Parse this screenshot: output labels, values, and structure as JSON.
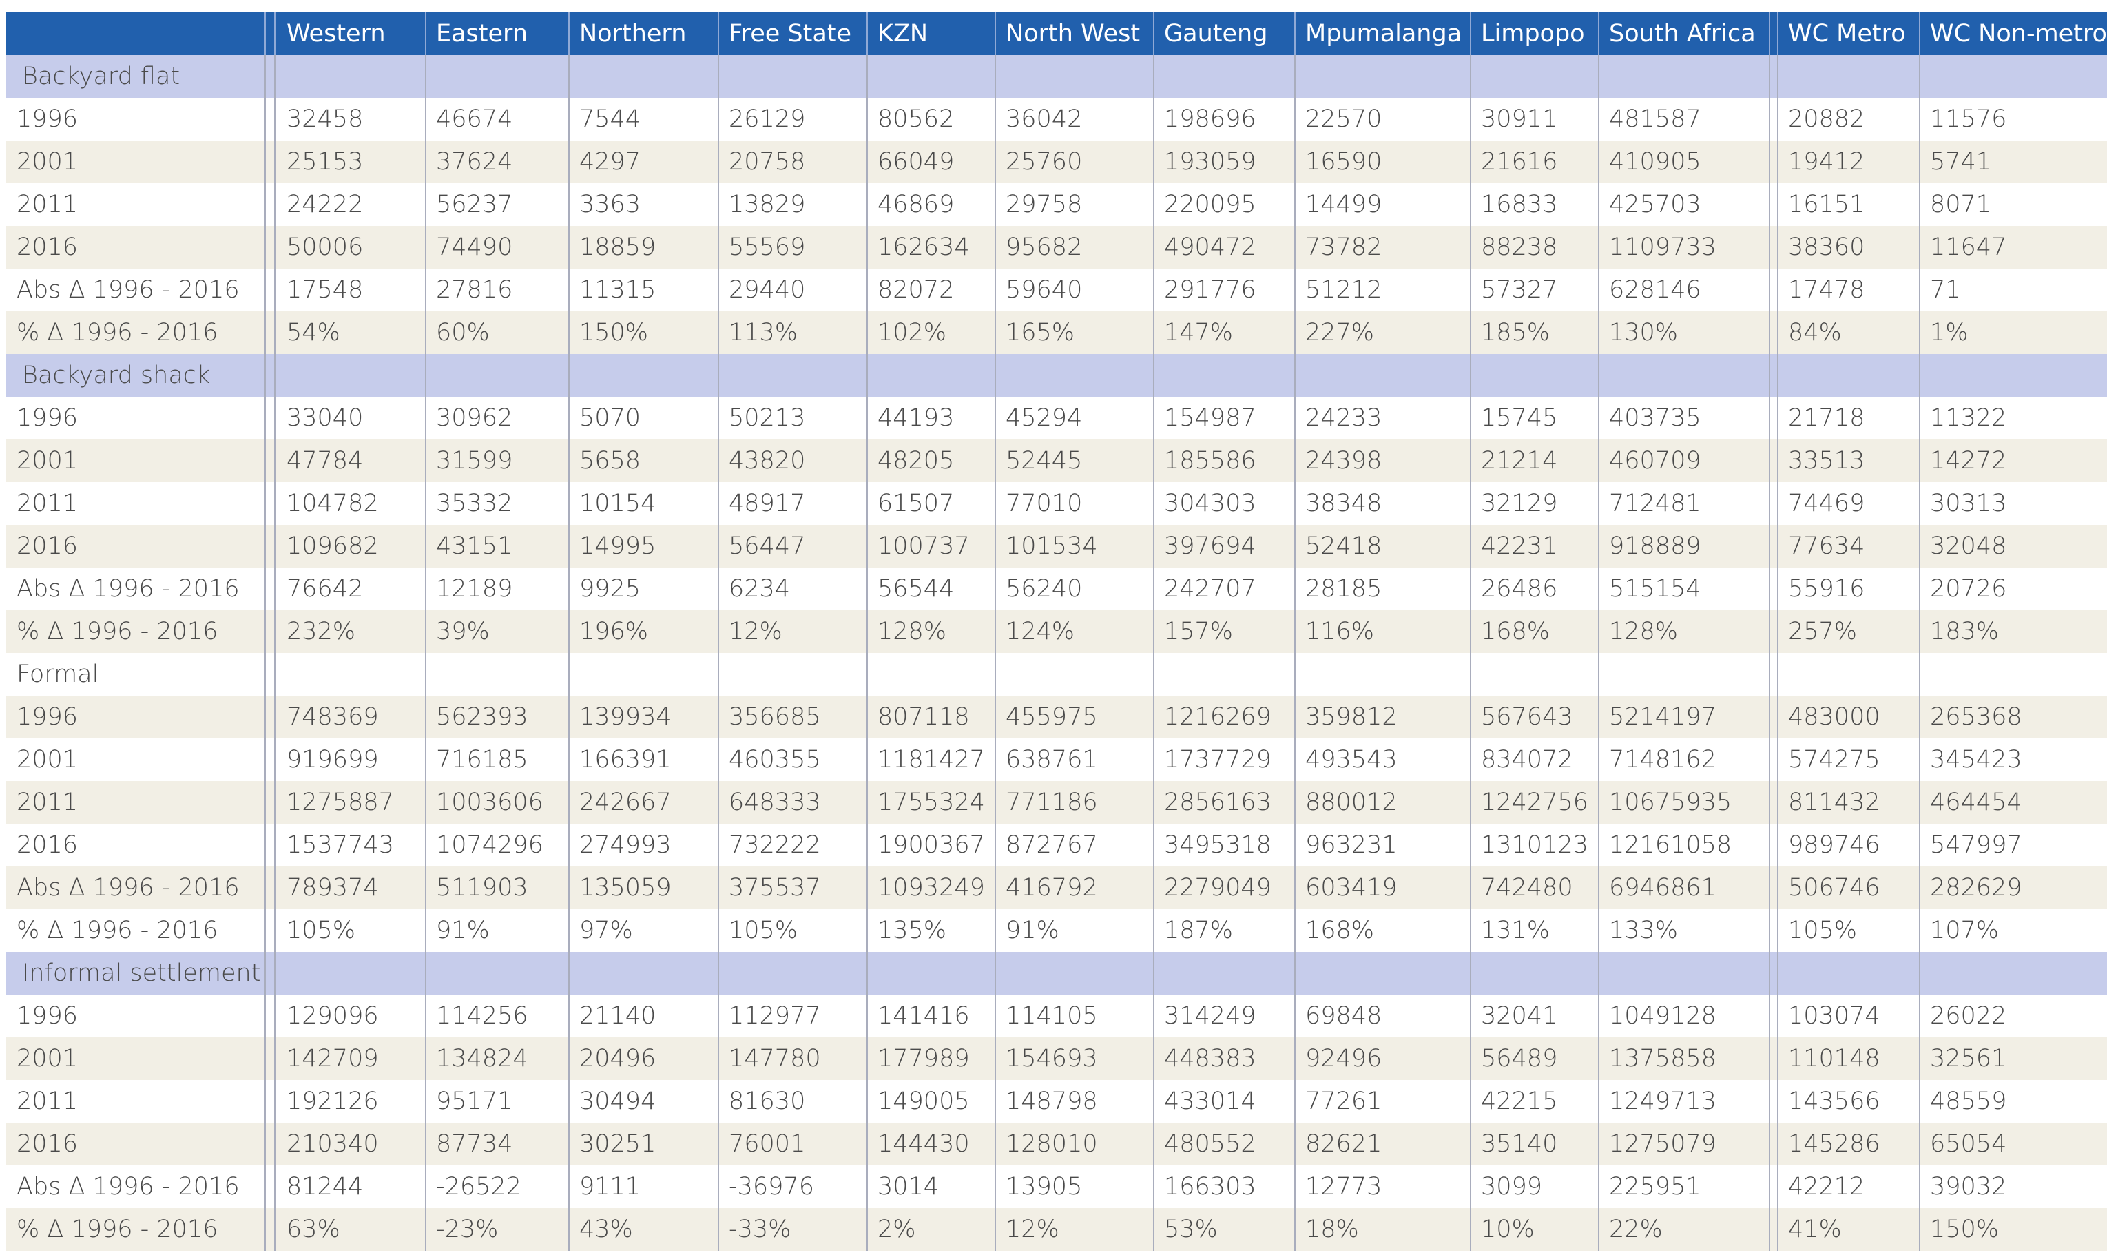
{
  "table": {
    "columns": [
      "Western",
      "Eastern",
      "Northern",
      "Free State",
      "KZN",
      "North West",
      "Gauteng",
      "Mpumalanga",
      "Limpopo",
      "South Africa",
      "WC Metro",
      "WC Non-metro"
    ],
    "sections": [
      {
        "label": "Backyard flat",
        "rows": [
          [
            "1996",
            "32458",
            "46674",
            "7544",
            "26129",
            "80562",
            "36042",
            "198696",
            "22570",
            "30911",
            "481587",
            "20882",
            "11576"
          ],
          [
            "2001",
            "25153",
            "37624",
            "4297",
            "20758",
            "66049",
            "25760",
            "193059",
            "16590",
            "21616",
            "410905",
            "19412",
            "5741"
          ],
          [
            "2011",
            "24222",
            "56237",
            "3363",
            "13829",
            "46869",
            "29758",
            "220095",
            "14499",
            "16833",
            "425703",
            "16151",
            "8071"
          ],
          [
            "2016",
            "50006",
            "74490",
            "18859",
            "55569",
            "162634",
            "95682",
            "490472",
            "73782",
            "88238",
            "1109733",
            "38360",
            "11647"
          ],
          [
            "Abs Δ 1996 - 2016",
            "17548",
            "27816",
            "11315",
            "29440",
            "82072",
            "59640",
            "291776",
            "51212",
            "57327",
            "628146",
            "17478",
            "71"
          ],
          [
            "% Δ 1996 - 2016",
            "54%",
            "60%",
            "150%",
            "113%",
            "102%",
            "165%",
            "147%",
            "227%",
            "185%",
            "130%",
            "84%",
            "1%"
          ]
        ]
      },
      {
        "label": "Backyard shack",
        "rows": [
          [
            "1996",
            "33040",
            "30962",
            "5070",
            "50213",
            "44193",
            "45294",
            "154987",
            "24233",
            "15745",
            "403735",
            "21718",
            "11322"
          ],
          [
            "2001",
            "47784",
            "31599",
            "5658",
            "43820",
            "48205",
            "52445",
            "185586",
            "24398",
            "21214",
            "460709",
            "33513",
            "14272"
          ],
          [
            "2011",
            "104782",
            "35332",
            "10154",
            "48917",
            "61507",
            "77010",
            "304303",
            "38348",
            "32129",
            "712481",
            "74469",
            "30313"
          ],
          [
            "2016",
            "109682",
            "43151",
            "14995",
            "56447",
            "100737",
            "101534",
            "397694",
            "52418",
            "42231",
            "918889",
            "77634",
            "32048"
          ],
          [
            "Abs Δ 1996 - 2016",
            "76642",
            "12189",
            "9925",
            "6234",
            "56544",
            "56240",
            "242707",
            "28185",
            "26486",
            "515154",
            "55916",
            "20726"
          ],
          [
            "% Δ 1996 - 2016",
            "232%",
            "39%",
            "196%",
            "12%",
            "128%",
            "124%",
            "157%",
            "116%",
            "168%",
            "128%",
            "257%",
            "183%"
          ]
        ]
      },
      {
        "label": "Formal",
        "rows": [
          [
            "1996",
            "748369",
            "562393",
            "139934",
            "356685",
            "807118",
            "455975",
            "1216269",
            "359812",
            "567643",
            "5214197",
            "483000",
            "265368"
          ],
          [
            "2001",
            "919699",
            "716185",
            "166391",
            "460355",
            "1181427",
            "638761",
            "1737729",
            "493543",
            "834072",
            "7148162",
            "574275",
            "345423"
          ],
          [
            "2011",
            "1275887",
            "1003606",
            "242667",
            "648333",
            "1755324",
            "771186",
            "2856163",
            "880012",
            "1242756",
            "10675935",
            "811432",
            "464454"
          ],
          [
            "2016",
            "1537743",
            "1074296",
            "274993",
            "732222",
            "1900367",
            "872767",
            "3495318",
            "963231",
            "1310123",
            "12161058",
            "989746",
            "547997"
          ],
          [
            "Abs Δ 1996 - 2016",
            "789374",
            "511903",
            "135059",
            "375537",
            "1093249",
            "416792",
            "2279049",
            "603419",
            "742480",
            "6946861",
            "506746",
            "282629"
          ],
          [
            "% Δ 1996 - 2016",
            "105%",
            "91%",
            "97%",
            "105%",
            "135%",
            "91%",
            "187%",
            "168%",
            "131%",
            "133%",
            "105%",
            "107%"
          ]
        ]
      },
      {
        "label": "Informal settlement",
        "rows": [
          [
            "1996",
            "129096",
            "114256",
            "21140",
            "112977",
            "141416",
            "114105",
            "314249",
            "69848",
            "32041",
            "1049128",
            "103074",
            "26022"
          ],
          [
            "2001",
            "142709",
            "134824",
            "20496",
            "147780",
            "177989",
            "154693",
            "448383",
            "92496",
            "56489",
            "1375858",
            "110148",
            "32561"
          ],
          [
            "2011",
            "192126",
            "95171",
            "30494",
            "81630",
            "149005",
            "148798",
            "433014",
            "77261",
            "42215",
            "1249713",
            "143566",
            "48559"
          ],
          [
            "2016",
            "210340",
            "87734",
            "30251",
            "76001",
            "144430",
            "128010",
            "480552",
            "82621",
            "35140",
            "1275079",
            "145286",
            "65054"
          ],
          [
            "Abs Δ 1996 - 2016",
            "81244",
            "-26522",
            "9111",
            "-36976",
            "3014",
            "13905",
            "166303",
            "12773",
            "3099",
            "225951",
            "42212",
            "39032"
          ],
          [
            "% Δ 1996 - 2016",
            "63%",
            "-23%",
            "43%",
            "-33%",
            "2%",
            "12%",
            "53%",
            "18%",
            "10%",
            "22%",
            "41%",
            "150%"
          ]
        ]
      }
    ]
  }
}
